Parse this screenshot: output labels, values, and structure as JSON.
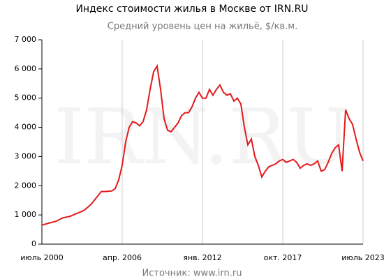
{
  "chart_data": {
    "type": "line",
    "title": "Индекс стоимости жилья в Москве от IRN.RU",
    "subtitle": "Средний уровень цен на жильё, $/кв.м.",
    "watermark": "IRN.RU",
    "source": "Источник: www.irn.ru",
    "x": [
      "2000-07",
      "2001-01",
      "2001-07",
      "2002-01",
      "2002-07",
      "2003-01",
      "2003-07",
      "2004-01",
      "2004-07",
      "2004-10",
      "2005-01",
      "2005-07",
      "2005-10",
      "2006-01",
      "2006-04",
      "2006-07",
      "2006-10",
      "2007-01",
      "2007-04",
      "2007-07",
      "2007-10",
      "2008-01",
      "2008-04",
      "2008-07",
      "2008-10",
      "2009-01",
      "2009-04",
      "2009-07",
      "2009-10",
      "2010-01",
      "2010-04",
      "2010-07",
      "2010-10",
      "2011-01",
      "2011-04",
      "2011-07",
      "2011-10",
      "2012-01",
      "2012-04",
      "2012-07",
      "2012-10",
      "2013-01",
      "2013-04",
      "2013-07",
      "2013-10",
      "2014-01",
      "2014-04",
      "2014-07",
      "2014-10",
      "2015-01",
      "2015-04",
      "2015-07",
      "2015-10",
      "2016-01",
      "2016-04",
      "2016-07",
      "2016-10",
      "2017-01",
      "2017-04",
      "2017-07",
      "2017-10",
      "2018-01",
      "2018-04",
      "2018-07",
      "2018-10",
      "2019-01",
      "2019-04",
      "2019-07",
      "2019-10",
      "2020-01",
      "2020-04",
      "2020-07",
      "2020-10",
      "2021-01",
      "2021-04",
      "2021-07",
      "2021-10",
      "2022-01",
      "2022-04",
      "2022-07",
      "2022-10",
      "2023-01",
      "2023-04",
      "2023-07"
    ],
    "series": [
      {
        "name": "Индекс IRN.RU",
        "color": "#e31a1c",
        "values": [
          650,
          720,
          780,
          900,
          950,
          1050,
          1150,
          1350,
          1650,
          1800,
          1800,
          1820,
          1900,
          2200,
          2700,
          3500,
          4000,
          4200,
          4150,
          4050,
          4200,
          4600,
          5300,
          5900,
          6100,
          5300,
          4300,
          3900,
          3850,
          4000,
          4150,
          4400,
          4500,
          4500,
          4700,
          5000,
          5200,
          5000,
          5000,
          5300,
          5100,
          5300,
          5450,
          5200,
          5100,
          5150,
          4900,
          5000,
          4800,
          4000,
          3400,
          3600,
          3000,
          2700,
          2300,
          2500,
          2650,
          2700,
          2750,
          2850,
          2900,
          2800,
          2850,
          2900,
          2800,
          2600,
          2700,
          2750,
          2700,
          2750,
          2850,
          2500,
          2550,
          2800,
          3100,
          3300,
          3400,
          2500,
          4600,
          4300,
          4100,
          3600,
          3150,
          2850
        ]
      }
    ],
    "xlim": [
      "2000-07",
      "2023-07"
    ],
    "xticks": [
      {
        "value": "2000-07",
        "label": "июль 2000"
      },
      {
        "value": "2006-04",
        "label": "апр. 2006"
      },
      {
        "value": "2012-01",
        "label": "янв. 2012"
      },
      {
        "value": "2017-10",
        "label": "окт. 2017"
      },
      {
        "value": "2023-07",
        "label": "июль 2023"
      }
    ],
    "ylim": [
      0,
      7000
    ],
    "yticks": [
      0,
      {
        "value": 1000,
        "label": "1 000"
      },
      {
        "value": 2000,
        "label": "2 000"
      },
      {
        "value": 3000,
        "label": "3 000"
      },
      {
        "value": 4000,
        "label": "4 000"
      },
      {
        "value": 5000,
        "label": "5 000"
      },
      {
        "value": 6000,
        "label": "6 000"
      },
      {
        "value": 7000,
        "label": "7 000"
      }
    ],
    "grid": true
  }
}
